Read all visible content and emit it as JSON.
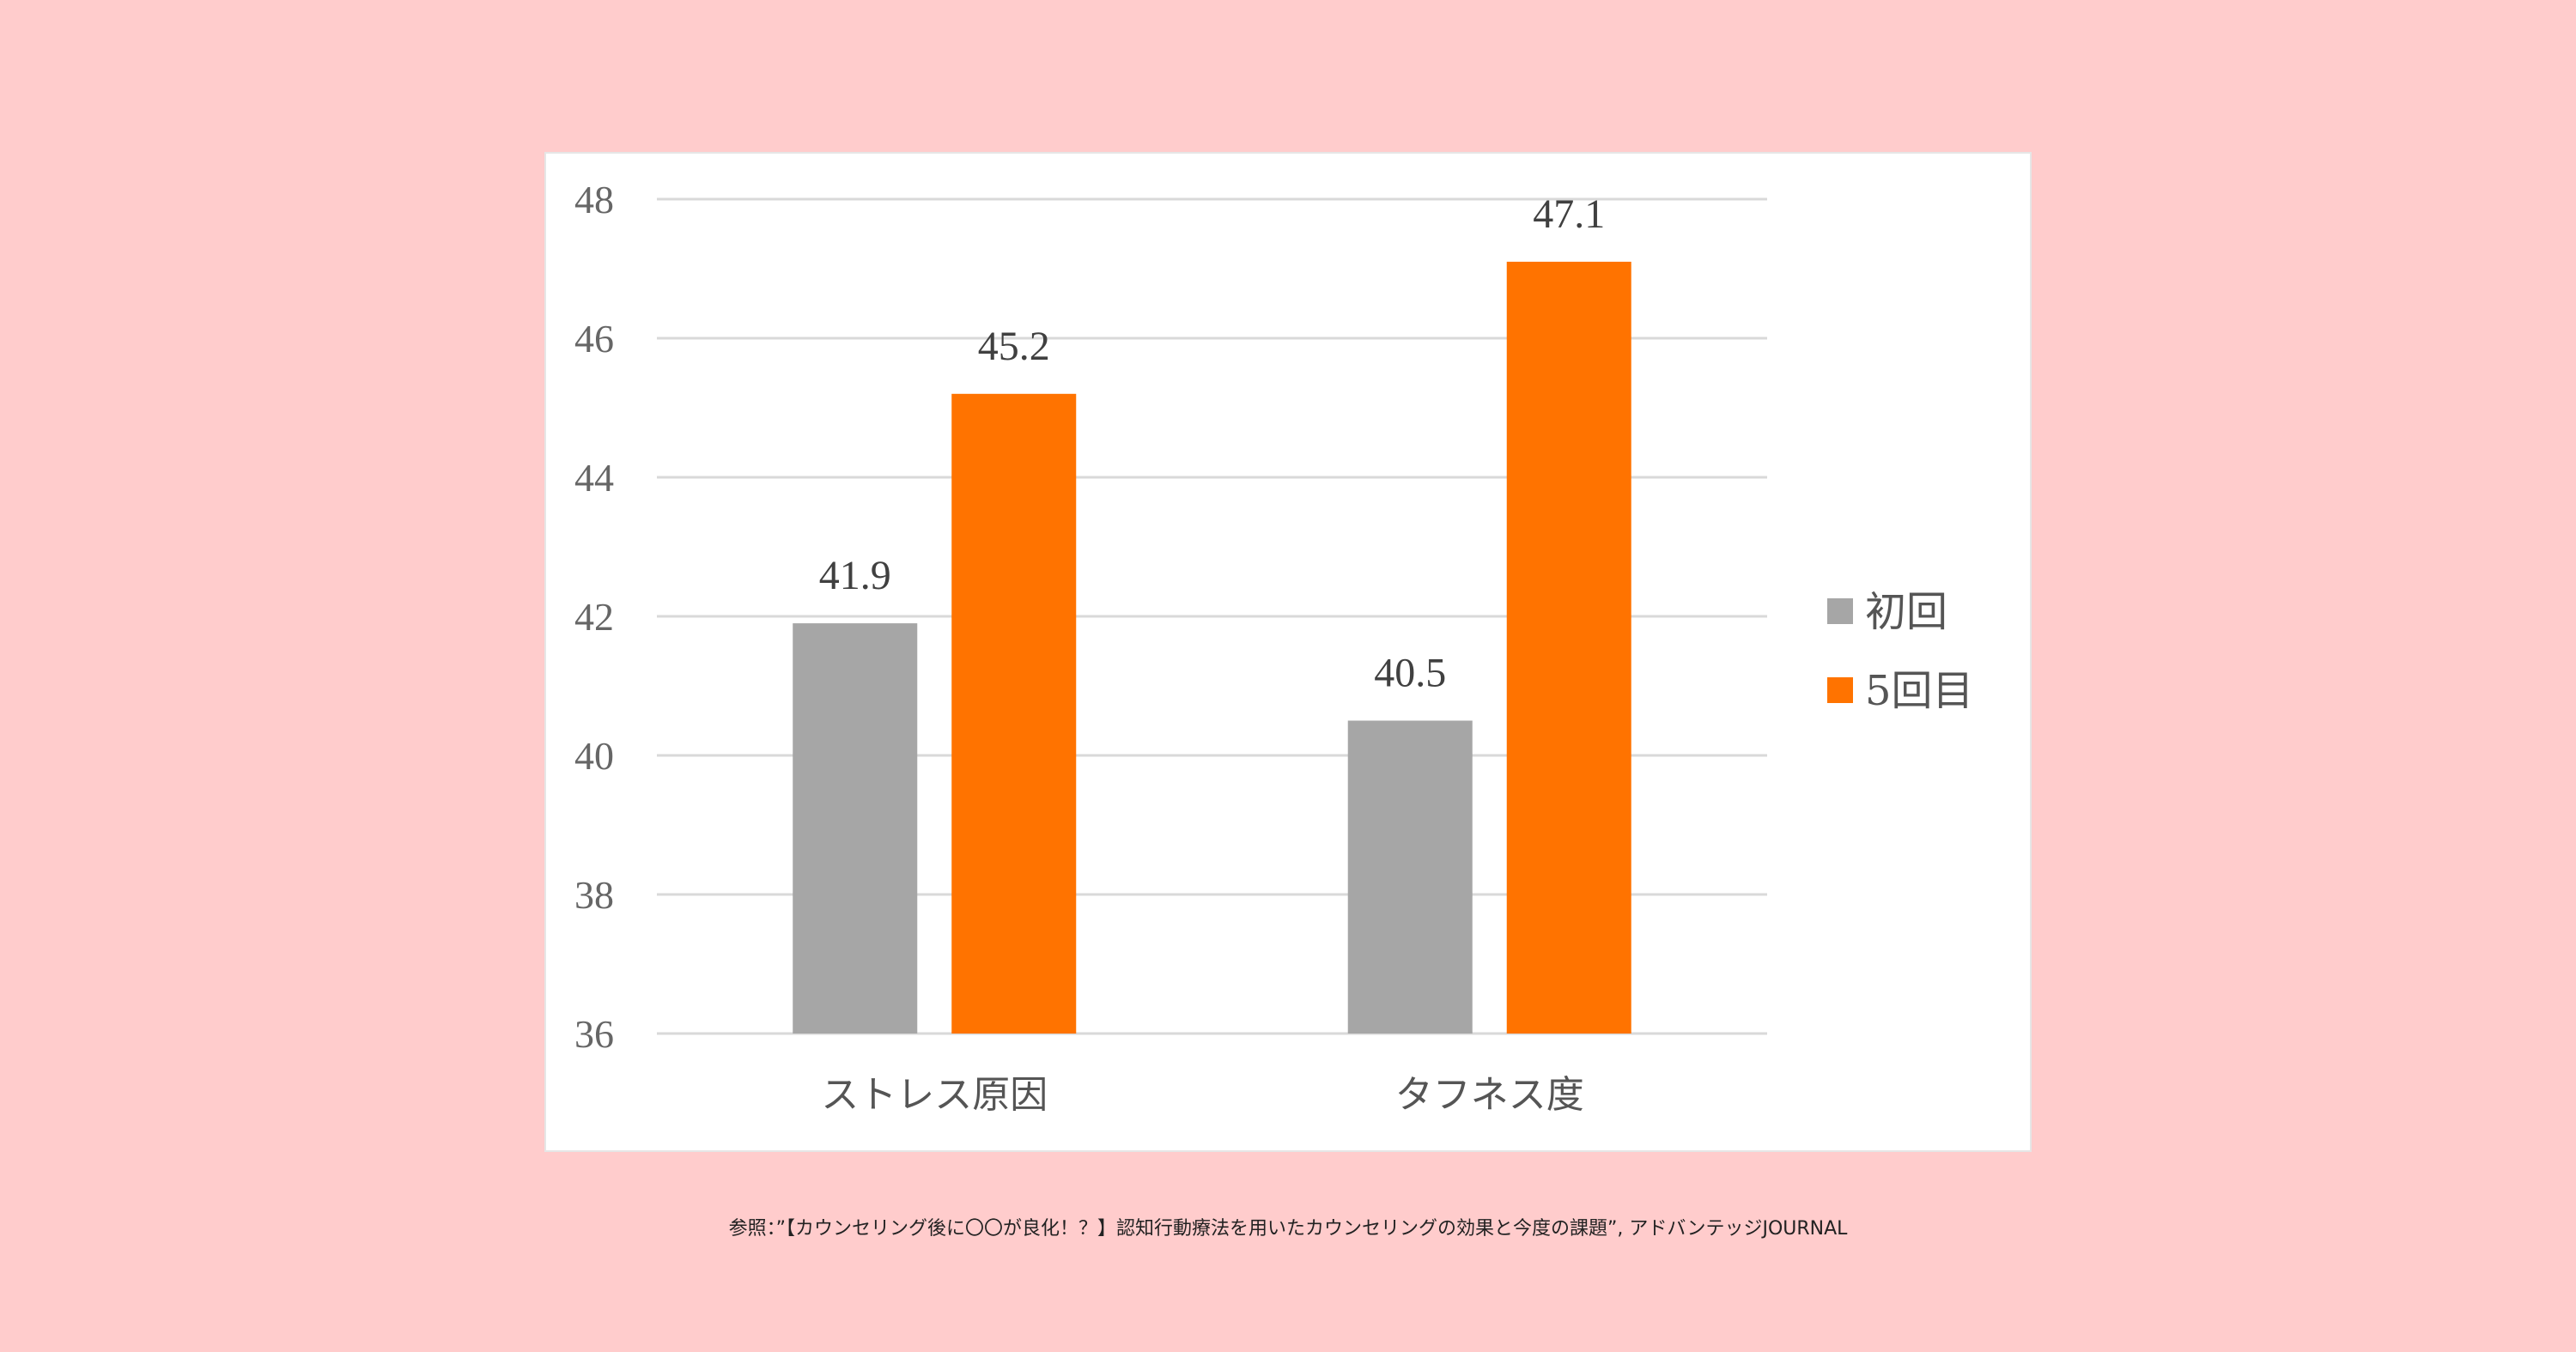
{
  "chart_data": {
    "type": "bar",
    "categories": [
      "ストレス原因",
      "タフネス度"
    ],
    "series": [
      {
        "name": "初回",
        "values": [
          41.9,
          40.5
        ],
        "color": "#a6a6a6"
      },
      {
        "name": "5回目",
        "values": [
          45.2,
          47.1
        ],
        "color": "#ff7300"
      }
    ],
    "ylim": [
      36,
      48
    ],
    "yticks": [
      36,
      38,
      40,
      42,
      44,
      46,
      48
    ],
    "grid": true,
    "legend": "right",
    "data_labels": true
  },
  "caption": "参照：”【カウンセリング後に〇〇が良化！？】認知行動療法を用いたカウンセリングの効果と今度の課題”, アドバンテッジJOURNAL",
  "colors": {
    "background": "#ffcccc",
    "panel": "#ffffff"
  }
}
